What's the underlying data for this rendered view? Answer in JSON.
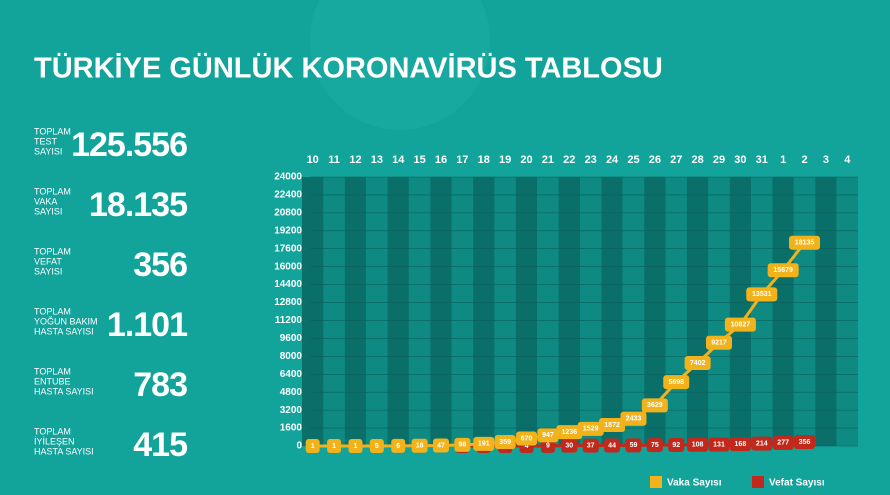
{
  "title": "TÜRKİYE GÜNLÜK KORONAVİRÜS TABLOSU",
  "stats": [
    {
      "label": [
        "TOPLAM",
        "TEST",
        "SAYISI"
      ],
      "value": "125.556"
    },
    {
      "label": [
        "TOPLAM",
        "VAKA",
        "SAYISI"
      ],
      "value": "18.135"
    },
    {
      "label": [
        "TOPLAM",
        "VEFAT",
        "SAYISI"
      ],
      "value": "356"
    },
    {
      "label": [
        "TOPLAM",
        "YOĞUN BAKIM",
        "HASTA SAYISI"
      ],
      "value": "1.101"
    },
    {
      "label": [
        "TOPLAM",
        "ENTUBE",
        "HASTA SAYISI"
      ],
      "value": "783"
    },
    {
      "label": [
        "TOPLAM",
        "İYİLEŞEN",
        "HASTA SAYISI"
      ],
      "value": "415"
    }
  ],
  "chart_data": {
    "type": "line",
    "categories": [
      "10",
      "11",
      "12",
      "13",
      "14",
      "15",
      "16",
      "17",
      "18",
      "19",
      "20",
      "21",
      "22",
      "23",
      "24",
      "25",
      "26",
      "27",
      "28",
      "29",
      "30",
      "31",
      "1",
      "2",
      "3",
      "4"
    ],
    "series": [
      {
        "name": "Vaka Sayısı",
        "color": "#f2b21b",
        "values": [
          1,
          1,
          1,
          5,
          6,
          18,
          47,
          98,
          191,
          359,
          670,
          947,
          1236,
          1529,
          1872,
          2433,
          3629,
          5698,
          7402,
          9217,
          10827,
          13531,
          15679,
          18135,
          null,
          null
        ]
      },
      {
        "name": "Vefat Sayısı",
        "color": "#c0291b",
        "values": [
          null,
          null,
          null,
          null,
          null,
          null,
          null,
          1,
          2,
          3,
          4,
          9,
          30,
          37,
          44,
          59,
          75,
          92,
          108,
          131,
          168,
          214,
          277,
          356,
          null,
          null
        ]
      }
    ],
    "ylim": [
      0,
      24000
    ],
    "yticks": [
      0,
      1600,
      3200,
      4800,
      6400,
      8000,
      9600,
      11200,
      12800,
      14400,
      16000,
      17600,
      19200,
      20800,
      22400,
      24000
    ],
    "grid": true
  }
}
